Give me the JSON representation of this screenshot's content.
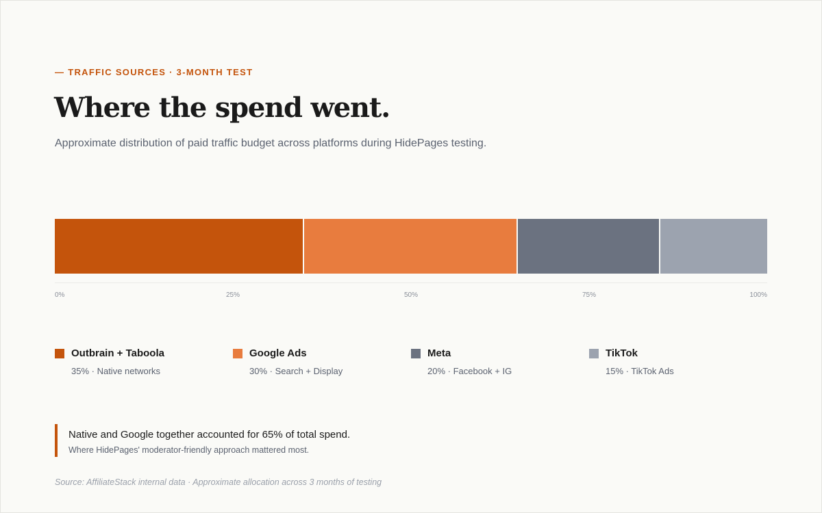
{
  "header": {
    "eyebrow": "— TRAFFIC SOURCES · 3-MONTH TEST",
    "title": "Where the spend went.",
    "subtitle": "Approximate distribution of paid traffic budget across platforms during HidePages testing."
  },
  "chart_data": {
    "type": "bar",
    "orientation": "horizontal-stacked",
    "categories": [
      "Outbrain + Taboola",
      "Google Ads",
      "Meta",
      "TikTok"
    ],
    "values": [
      35,
      30,
      20,
      15
    ],
    "colors": [
      "#c4540c",
      "#e87c3e",
      "#6b7280",
      "#9ca3af"
    ],
    "xlim": [
      0,
      100
    ],
    "ticks": [
      "0%",
      "25%",
      "50%",
      "75%",
      "100%"
    ],
    "tick_values": [
      0,
      25,
      50,
      75,
      100
    ],
    "grid": false
  },
  "legend": [
    {
      "name": "Outbrain + Taboola",
      "detail": "35% · Native networks"
    },
    {
      "name": "Google Ads",
      "detail": "30% · Search + Display"
    },
    {
      "name": "Meta",
      "detail": "20% · Facebook + IG"
    },
    {
      "name": "TikTok",
      "detail": "15% · TikTok Ads"
    }
  ],
  "callout": {
    "main": "Native and Google together accounted for 65% of total spend.",
    "sub": "Where HidePages' moderator-friendly approach mattered most."
  },
  "source": "Source: AffiliateStack internal data · Approximate allocation across 3 months of testing",
  "colors": {
    "accent": "#c4540c",
    "background": "#fafaf7"
  }
}
